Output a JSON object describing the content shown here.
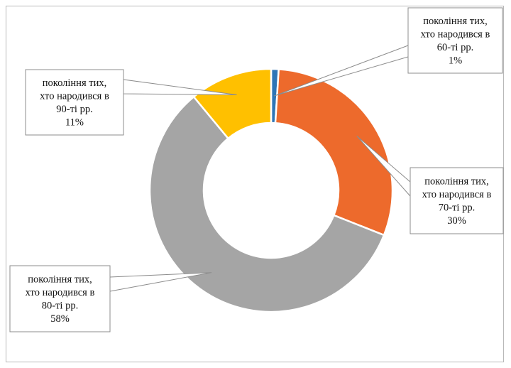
{
  "chart_data": {
    "type": "pie",
    "donut": true,
    "title": "",
    "legend": "none",
    "slices": [
      {
        "label_lines": [
          "покоління тих,",
          "хто народився в",
          "60-ті рр."
        ],
        "percent_label": "1%",
        "value": 1,
        "color": "#2E75B6"
      },
      {
        "label_lines": [
          "покоління тих,",
          "хто народився в",
          "70-ті рр."
        ],
        "percent_label": "30%",
        "value": 30,
        "color": "#ED6A2C"
      },
      {
        "label_lines": [
          "покоління тих,",
          "хто народився в",
          "80-ті рр."
        ],
        "percent_label": "58%",
        "value": 58,
        "color": "#A5A5A5"
      },
      {
        "label_lines": [
          "покоління тих,",
          "хто народився в",
          "90-ті рр."
        ],
        "percent_label": "11%",
        "value": 11,
        "color": "#FFC000"
      }
    ]
  }
}
